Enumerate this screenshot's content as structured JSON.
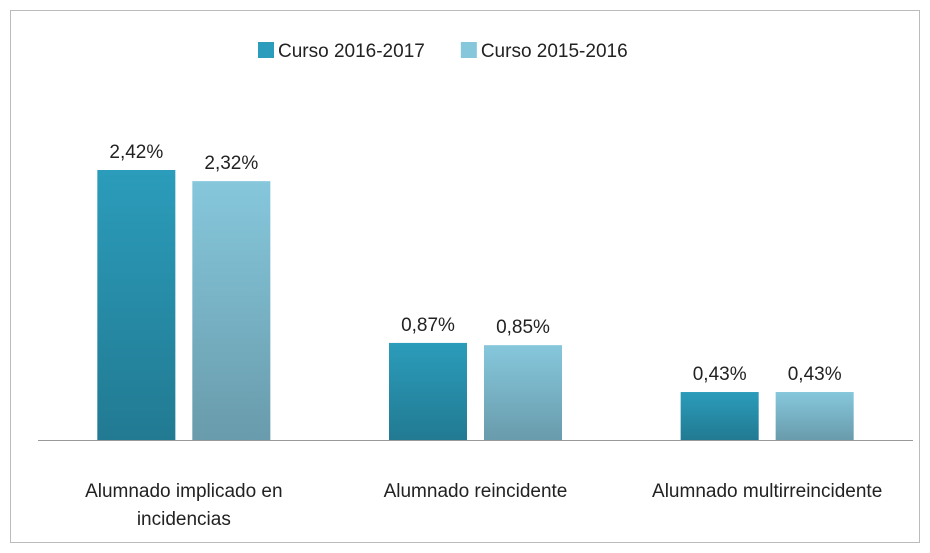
{
  "chart_data": {
    "type": "bar",
    "categories": [
      "Alumnado implicado en incidencias",
      "Alumnado reincidente",
      "Alumnado multirreincidente"
    ],
    "series": [
      {
        "name": "Curso 2016-2017",
        "color": "#2b9cbb",
        "values": [
          2.42,
          0.87,
          0.43
        ],
        "value_labels": [
          "2,42%",
          "0,87%",
          "0,43%"
        ]
      },
      {
        "name": "Curso 2015-2016",
        "color": "#86c7dc",
        "values": [
          2.32,
          0.85,
          0.43
        ],
        "value_labels": [
          "2,32%",
          "0,85%",
          "0,43%"
        ]
      }
    ],
    "legend": "top"
  }
}
